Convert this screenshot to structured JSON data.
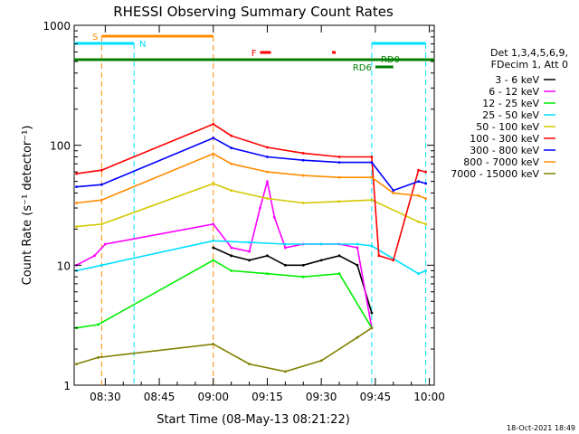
{
  "chart_data": {
    "type": "line",
    "title": "RHESSI Observing Summary Count Rates",
    "xlabel": "Start Time (08-May-13 08:21:22)",
    "ylabel": "Count Rate (s⁻¹ detector⁻¹)",
    "y_scale": "log",
    "ylim": [
      1,
      1000
    ],
    "xlim": [
      "08:21:22",
      "10:01:22"
    ],
    "x_tick_labels": [
      "08:30",
      "08:45",
      "09:00",
      "09:15",
      "09:30",
      "09:45",
      "10:00"
    ],
    "y_tick_labels": [
      "1",
      "10",
      "100",
      "1000"
    ],
    "legend_title": [
      "Det 1,3,4,5,6,9,",
      "FDecim 1, Att 0"
    ],
    "legend_position": "right",
    "series": [
      {
        "name": "3 - 6 keV",
        "color": "#000000",
        "x": [
          "09:00",
          "09:05",
          "09:10",
          "09:15",
          "09:20",
          "09:25",
          "09:30",
          "09:35",
          "09:40",
          "09:44"
        ],
        "y": [
          14,
          12,
          11,
          12,
          10,
          10,
          11,
          12,
          10,
          4
        ]
      },
      {
        "name": "6 - 12 keV",
        "color": "#ff00ff",
        "x": [
          "08:22",
          "08:27",
          "08:30",
          "09:00",
          "09:05",
          "09:10",
          "09:13",
          "09:15",
          "09:17",
          "09:20",
          "09:25",
          "09:30",
          "09:35",
          "09:40",
          "09:44"
        ],
        "y": [
          10,
          12,
          15,
          22,
          14,
          13,
          30,
          50,
          25,
          14,
          15,
          15,
          15,
          14,
          3
        ]
      },
      {
        "name": "12 - 25 keV",
        "color": "#00ee00",
        "x": [
          "08:22",
          "08:28",
          "09:00",
          "09:05",
          "09:15",
          "09:25",
          "09:35",
          "09:44"
        ],
        "y": [
          3,
          3.2,
          11,
          9,
          8.5,
          8,
          8.5,
          3
        ]
      },
      {
        "name": "25 - 50 keV",
        "color": "#00e0ff",
        "x": [
          "08:22",
          "08:29",
          "09:00",
          "09:10",
          "09:20",
          "09:30",
          "09:40",
          "09:44",
          "09:57",
          "09:59"
        ],
        "y": [
          9,
          10,
          16,
          15.5,
          15,
          15,
          15,
          14.5,
          8.5,
          9
        ]
      },
      {
        "name": "50 - 100 keV",
        "color": "#d4c800",
        "x": [
          "08:22",
          "08:29",
          "09:00",
          "09:05",
          "09:15",
          "09:25",
          "09:35",
          "09:44",
          "09:57",
          "09:59"
        ],
        "y": [
          21,
          22,
          48,
          42,
          36,
          33,
          34,
          35,
          23,
          22
        ]
      },
      {
        "name": "100 - 300 keV",
        "color": "#ff0000",
        "x": [
          "08:22",
          "08:29",
          "09:00",
          "09:05",
          "09:15",
          "09:25",
          "09:35",
          "09:44",
          "09:46",
          "09:50",
          "09:57",
          "09:59"
        ],
        "y": [
          58,
          62,
          150,
          120,
          96,
          86,
          80,
          80,
          12,
          11,
          62,
          60
        ]
      },
      {
        "name": "300 - 800 keV",
        "color": "#0000ff",
        "x": [
          "08:22",
          "08:29",
          "09:00",
          "09:05",
          "09:15",
          "09:25",
          "09:35",
          "09:44",
          "09:50",
          "09:57",
          "09:59"
        ],
        "y": [
          45,
          47,
          115,
          95,
          80,
          75,
          72,
          72,
          42,
          50,
          48
        ]
      },
      {
        "name": "800 - 7000 keV",
        "color": "#ff8c00",
        "x": [
          "08:22",
          "08:29",
          "09:00",
          "09:05",
          "09:15",
          "09:25",
          "09:35",
          "09:44",
          "09:50",
          "09:57",
          "09:59"
        ],
        "y": [
          33,
          35,
          85,
          70,
          60,
          56,
          54,
          54,
          40,
          38,
          36
        ]
      },
      {
        "name": "7000 - 15000 keV",
        "color": "#808000",
        "x": [
          "08:22",
          "08:28",
          "09:00",
          "09:10",
          "09:20",
          "09:30",
          "09:40",
          "09:44"
        ],
        "y": [
          1.5,
          1.7,
          2.2,
          1.5,
          1.3,
          1.6,
          2.5,
          3
        ]
      }
    ],
    "flag_bars": [
      {
        "label": "S",
        "color": "#ff8c00",
        "start": "08:29",
        "end": "09:00"
      },
      {
        "label": "N",
        "color": "#00e0ff",
        "start": "08:21:22",
        "end": "08:38"
      },
      {
        "label": "N",
        "color": "#00e0ff",
        "start": "09:44",
        "end": "09:59"
      },
      {
        "label": "F",
        "color": "#ff0000",
        "start": "09:13",
        "end": "09:16"
      },
      {
        "label": "F",
        "color": "#ff0000",
        "start": "09:33",
        "end": "09:34"
      },
      {
        "label": "RD0",
        "color": "#008000",
        "start": "08:21:22",
        "end": "10:01:22"
      },
      {
        "label": "RD6",
        "color": "#008000",
        "start": "09:45",
        "end": "09:50"
      }
    ]
  },
  "footer": {
    "timestamp": "18-Oct-2021 18:49"
  }
}
